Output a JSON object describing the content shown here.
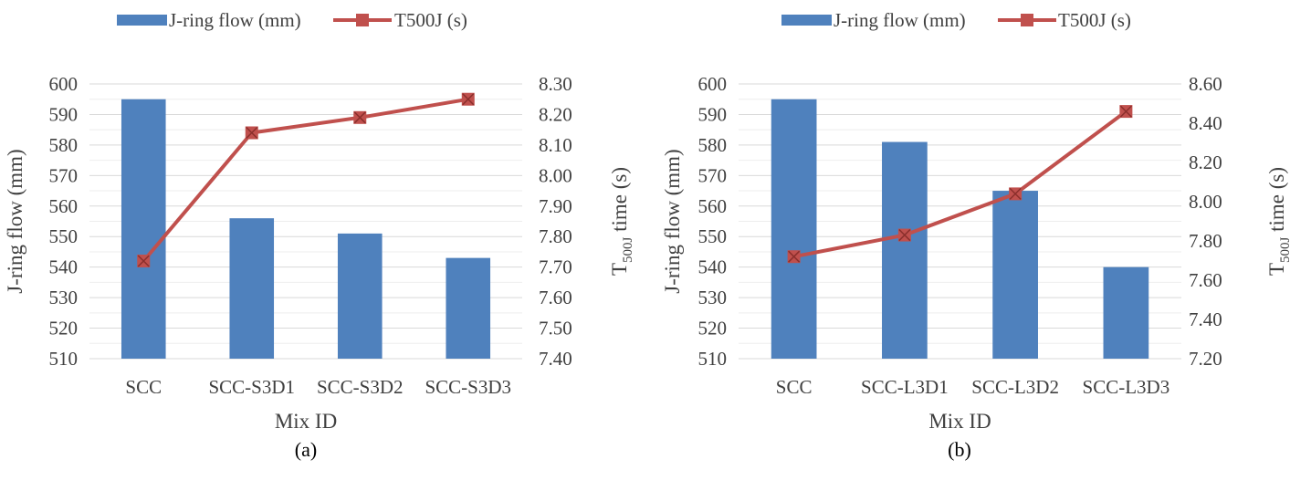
{
  "colors": {
    "bar": "#4F81BD",
    "line": "#C0504D",
    "grid": "#D9D9D9",
    "text": "#404040"
  },
  "chart_data": [
    {
      "type": "bar",
      "panel_label": "(a)",
      "legend_position": "top",
      "grid": true,
      "legend": [
        {
          "label": "J-ring flow (mm)",
          "marker": "bar"
        },
        {
          "label": "T500J (s)",
          "marker": "line-square"
        }
      ],
      "xlabel": "Mix ID",
      "ylabel": "J-ring  flow (mm)",
      "y2label": {
        "main": "T",
        "sub": "500J",
        "rest": " time (s)"
      },
      "categories": [
        "SCC",
        "SCC-S3D1",
        "SCC-S3D2",
        "SCC-S3D3"
      ],
      "ylim": [
        510,
        600
      ],
      "yticks": [
        "510",
        "520",
        "530",
        "540",
        "550",
        "560",
        "570",
        "580",
        "590",
        "600"
      ],
      "y2lim": [
        7.4,
        8.3
      ],
      "y2ticks": [
        "7.40",
        "7.50",
        "7.60",
        "7.70",
        "7.80",
        "7.90",
        "8.00",
        "8.10",
        "8.20",
        "8.30"
      ],
      "series": [
        {
          "name": "J-ring flow (mm)",
          "kind": "bar",
          "axis": "left",
          "values": [
            595,
            556,
            551,
            543
          ]
        },
        {
          "name": "T500J (s)",
          "kind": "line",
          "axis": "right",
          "values": [
            7.72,
            8.14,
            8.19,
            8.25
          ]
        }
      ]
    },
    {
      "type": "bar",
      "panel_label": "(b)",
      "legend_position": "top",
      "grid": true,
      "legend": [
        {
          "label": "J-ring flow (mm)",
          "marker": "bar"
        },
        {
          "label": "T500J (s)",
          "marker": "line-square"
        }
      ],
      "xlabel": "Mix ID",
      "ylabel": "J-ring flow (mm)",
      "y2label": {
        "main": "T",
        "sub": "500J",
        "rest": " time (s)"
      },
      "categories": [
        "SCC",
        "SCC-L3D1",
        "SCC-L3D2",
        "SCC-L3D3"
      ],
      "ylim": [
        510,
        600
      ],
      "yticks": [
        "510",
        "520",
        "530",
        "540",
        "550",
        "560",
        "570",
        "580",
        "590",
        "600"
      ],
      "y2lim": [
        7.2,
        8.6
      ],
      "y2ticks": [
        "7.20",
        "7.40",
        "7.60",
        "7.80",
        "8.00",
        "8.20",
        "8.40",
        "8.60"
      ],
      "series": [
        {
          "name": "J-ring flow (mm)",
          "kind": "bar",
          "axis": "left",
          "values": [
            595,
            581,
            565,
            540
          ]
        },
        {
          "name": "T500J (s)",
          "kind": "line",
          "axis": "right",
          "values": [
            7.72,
            7.83,
            8.04,
            8.46
          ]
        }
      ]
    }
  ]
}
